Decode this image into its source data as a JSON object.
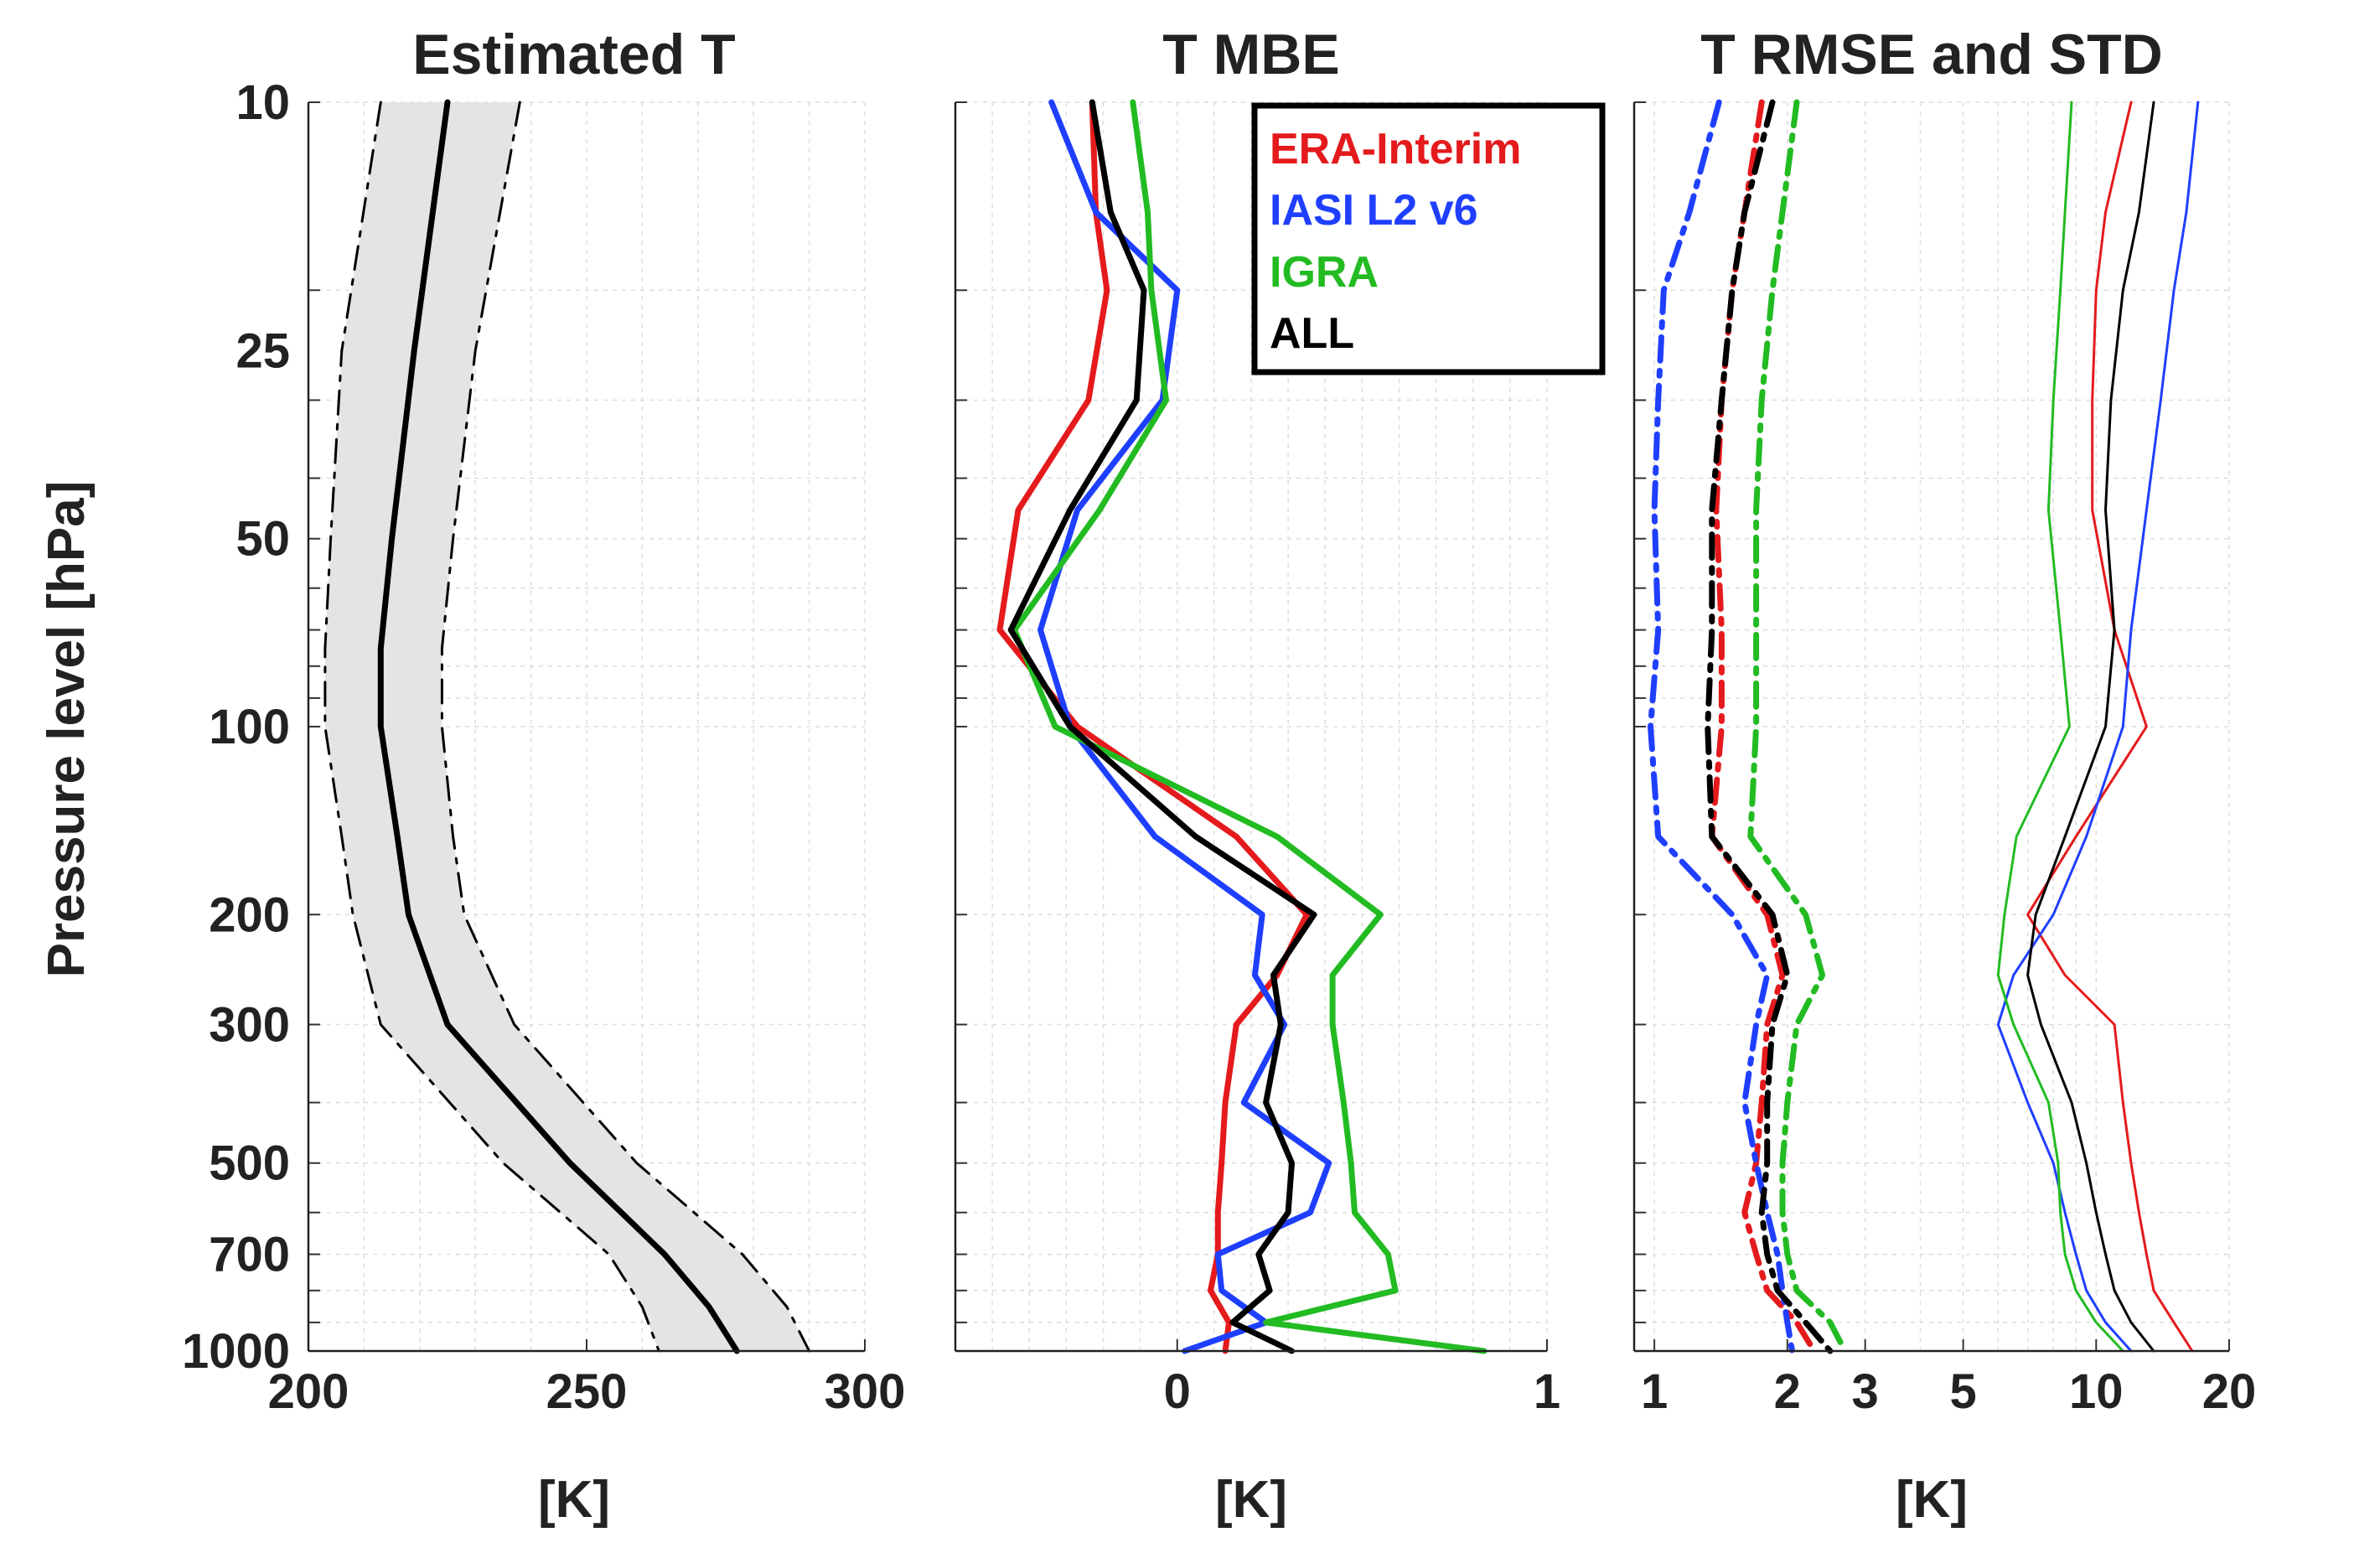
{
  "shared": {
    "ylabel": "Pressure level [hPa]",
    "y_ticks": [
      "10",
      "25",
      "50",
      "100",
      "200",
      "300",
      "500",
      "700",
      "1000"
    ],
    "ylim": [
      10,
      1000
    ],
    "y_scale": "log",
    "y_reversed": true
  },
  "chart_data": [
    {
      "type": "line",
      "title": "Estimated T",
      "xlabel": "[K]",
      "xlim": [
        200,
        300
      ],
      "x_ticks": [
        "200",
        "250",
        "300"
      ],
      "pressure": [
        10,
        25,
        50,
        75,
        100,
        150,
        200,
        300,
        500,
        700,
        850,
        1000
      ],
      "series": [
        {
          "name": "mean",
          "color": "#000000",
          "style": "solid",
          "values": [
            225,
            219,
            215,
            213,
            213,
            216,
            218,
            225,
            247,
            264,
            272,
            277
          ]
        },
        {
          "name": "upper",
          "color": "#000000",
          "style": "dashdot",
          "values": [
            238,
            230,
            226,
            224,
            224,
            226,
            228,
            237,
            259,
            278,
            286,
            290
          ]
        },
        {
          "name": "lower",
          "color": "#000000",
          "style": "dashdot",
          "values": [
            213,
            206,
            204,
            203,
            203,
            206,
            208,
            213,
            235,
            254,
            260,
            263
          ]
        }
      ]
    },
    {
      "type": "line",
      "title": "T MBE",
      "xlabel": "[K]",
      "xlim": [
        -0.6,
        1
      ],
      "x_ticks": [
        "0",
        "1"
      ],
      "x_tick_values": [
        0,
        1
      ],
      "legend": [
        "ERA-Interim",
        "IASI L2 v6",
        "IGRA",
        "ALL"
      ],
      "legend_position": "top-right",
      "pressure": [
        10,
        15,
        20,
        30,
        45,
        70,
        100,
        150,
        200,
        250,
        300,
        400,
        500,
        600,
        700,
        800,
        900,
        1000
      ],
      "series": [
        {
          "name": "ERA-Interim",
          "color": "#e41a1c",
          "values": [
            -0.23,
            -0.22,
            -0.19,
            -0.24,
            -0.43,
            -0.48,
            -0.27,
            0.16,
            0.35,
            0.27,
            0.16,
            0.13,
            0.12,
            0.11,
            0.11,
            0.09,
            0.14,
            0.13
          ]
        },
        {
          "name": "IASI L2 v6",
          "color": "#1f3fff",
          "values": [
            -0.34,
            -0.22,
            0.0,
            -0.04,
            -0.27,
            -0.37,
            -0.29,
            -0.06,
            0.23,
            0.21,
            0.29,
            0.18,
            0.41,
            0.36,
            0.11,
            0.12,
            0.24,
            0.02
          ]
        },
        {
          "name": "IGRA",
          "color": "#22bb22",
          "values": [
            -0.12,
            -0.08,
            -0.07,
            -0.03,
            -0.21,
            -0.44,
            -0.33,
            0.27,
            0.55,
            0.42,
            0.42,
            0.45,
            0.47,
            0.48,
            0.57,
            0.59,
            0.24,
            0.83
          ]
        },
        {
          "name": "ALL",
          "color": "#000000",
          "values": [
            -0.23,
            -0.18,
            -0.09,
            -0.11,
            -0.29,
            -0.45,
            -0.29,
            0.05,
            0.37,
            0.26,
            0.28,
            0.24,
            0.31,
            0.3,
            0.22,
            0.25,
            0.15,
            0.31
          ]
        }
      ]
    },
    {
      "type": "line",
      "title": "T RMSE and STD",
      "xlabel": "[K]",
      "xlim": [
        0.9,
        20
      ],
      "x_scale": "log",
      "x_ticks": [
        "1",
        "2",
        "3",
        "5",
        "10",
        "20"
      ],
      "x_tick_values": [
        1,
        2,
        3,
        5,
        10,
        20
      ],
      "pressure": [
        10,
        15,
        20,
        30,
        45,
        70,
        100,
        150,
        200,
        250,
        300,
        400,
        500,
        600,
        700,
        800,
        900,
        1000
      ],
      "series": [
        {
          "name": "ERA-Interim RMSE",
          "color": "#e41a1c",
          "style": "dashdot",
          "values": [
            1.75,
            1.6,
            1.5,
            1.42,
            1.38,
            1.42,
            1.42,
            1.35,
            1.8,
            1.95,
            1.8,
            1.75,
            1.7,
            1.6,
            1.7,
            1.8,
            2.1,
            2.3
          ]
        },
        {
          "name": "IASI L2 v6 RMSE",
          "color": "#1f3fff",
          "style": "dashdot",
          "values": [
            1.4,
            1.2,
            1.05,
            1.02,
            1.0,
            1.02,
            0.98,
            1.02,
            1.5,
            1.8,
            1.7,
            1.6,
            1.7,
            1.8,
            1.9,
            1.95,
            2.0,
            2.05
          ]
        },
        {
          "name": "IGRA RMSE",
          "color": "#22bb22",
          "style": "dashdot",
          "values": [
            2.1,
            1.95,
            1.85,
            1.75,
            1.7,
            1.7,
            1.7,
            1.65,
            2.2,
            2.4,
            2.1,
            2.0,
            1.95,
            1.95,
            2.0,
            2.1,
            2.5,
            2.7
          ]
        },
        {
          "name": "ALL RMSE",
          "color": "#000000",
          "style": "dashdot",
          "values": [
            1.85,
            1.6,
            1.5,
            1.42,
            1.35,
            1.35,
            1.32,
            1.35,
            1.85,
            2.0,
            1.85,
            1.8,
            1.8,
            1.75,
            1.8,
            1.9,
            2.2,
            2.5
          ]
        },
        {
          "name": "ERA-Interim STD",
          "color": "#e41a1c",
          "style": "solid",
          "values": [
            12.0,
            10.5,
            10.0,
            9.8,
            9.8,
            11.0,
            13.0,
            9.0,
            7.0,
            8.5,
            11.0,
            11.5,
            12.0,
            12.5,
            13.0,
            13.5,
            15.0,
            16.5
          ]
        },
        {
          "name": "IASI L2 v6 STD",
          "color": "#1f3fff",
          "style": "solid",
          "values": [
            17.0,
            16.0,
            15.0,
            14.0,
            13.0,
            12.0,
            11.5,
            9.5,
            8.0,
            6.5,
            6.0,
            7.0,
            8.0,
            8.5,
            9.0,
            9.5,
            10.5,
            12.0
          ]
        },
        {
          "name": "IGRA STD",
          "color": "#22bb22",
          "style": "solid",
          "values": [
            8.8,
            8.5,
            8.3,
            8.0,
            7.8,
            8.3,
            8.7,
            6.6,
            6.2,
            6.0,
            6.5,
            7.8,
            8.2,
            8.3,
            8.5,
            9.0,
            10.0,
            11.5
          ]
        },
        {
          "name": "ALL STD",
          "color": "#000000",
          "style": "solid",
          "values": [
            13.5,
            12.5,
            11.5,
            10.8,
            10.5,
            11.0,
            10.5,
            8.5,
            7.3,
            7.0,
            7.5,
            8.8,
            9.5,
            10.0,
            10.5,
            11.0,
            12.0,
            13.5
          ]
        }
      ]
    }
  ]
}
